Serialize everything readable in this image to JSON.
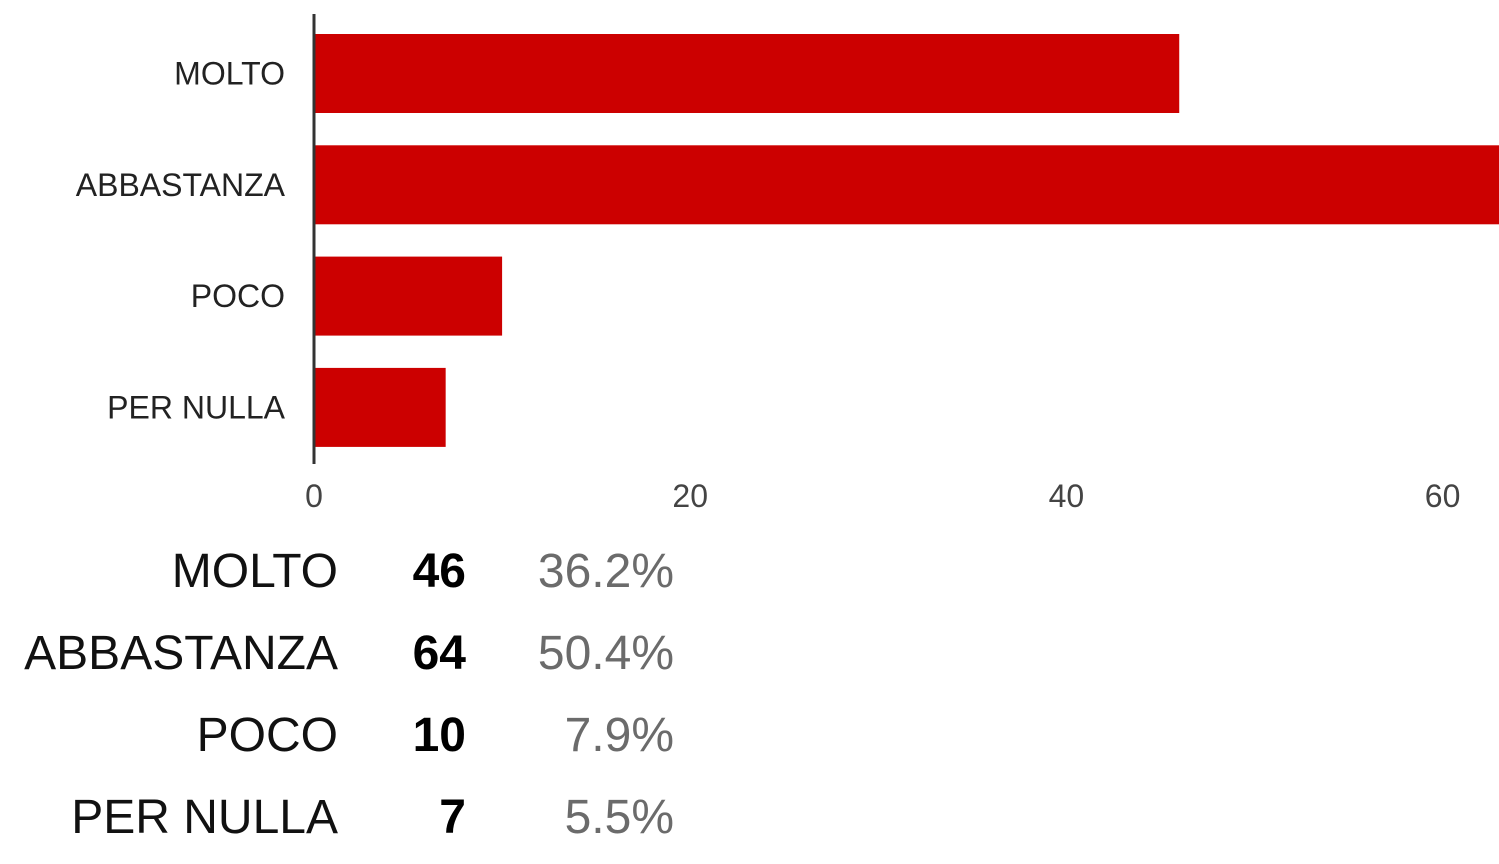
{
  "chart_data": {
    "type": "bar",
    "orientation": "horizontal",
    "categories": [
      "MOLTO",
      "ABBASTANZA",
      "POCO",
      "PER NULLA"
    ],
    "values": [
      46,
      64,
      10,
      7
    ],
    "xticks": [
      0,
      20,
      40,
      60
    ],
    "xlim": [
      0,
      63
    ],
    "grid": false,
    "bar_color": "#cc0000"
  },
  "summary": [
    {
      "label": "MOLTO",
      "count": "46",
      "percent": "36.2%"
    },
    {
      "label": "ABBASTANZA",
      "count": "64",
      "percent": "50.4%"
    },
    {
      "label": "POCO",
      "count": "10",
      "percent": "7.9%"
    },
    {
      "label": "PER NULLA",
      "count": "7",
      "percent": "5.5%"
    }
  ],
  "colors": {
    "axis": "#333333",
    "tick_text": "#444444",
    "percent_text": "#6b6b6b"
  }
}
